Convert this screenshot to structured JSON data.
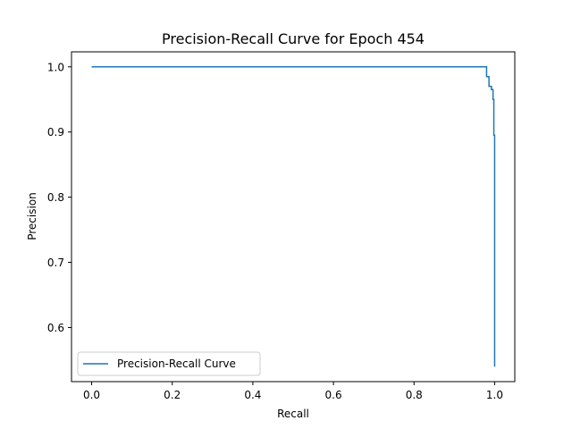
{
  "chart_data": {
    "type": "line",
    "title": "Precision-Recall Curve for Epoch 454",
    "xlabel": "Recall",
    "ylabel": "Precision",
    "xlim": [
      -0.05,
      1.05
    ],
    "ylim": [
      0.517,
      1.023
    ],
    "xticks": [
      0.0,
      0.2,
      0.4,
      0.6,
      0.8,
      1.0
    ],
    "xtick_labels": [
      "0.0",
      "0.2",
      "0.4",
      "0.6",
      "0.8",
      "1.0"
    ],
    "yticks": [
      0.6,
      0.7,
      0.8,
      0.9,
      1.0
    ],
    "ytick_labels": [
      "0.6",
      "0.7",
      "0.8",
      "0.9",
      "1.0"
    ],
    "grid": false,
    "legend_position": "lower-left",
    "series": [
      {
        "name": "Precision-Recall Curve",
        "color": "#1f77b4",
        "x": [
          0.0,
          0.98,
          0.98,
          0.986,
          0.986,
          0.992,
          0.992,
          0.996,
          0.996,
          0.998,
          0.998,
          1.0,
          1.0
        ],
        "y": [
          1.0,
          1.0,
          0.985,
          0.985,
          0.97,
          0.97,
          0.965,
          0.965,
          0.95,
          0.95,
          0.895,
          0.895,
          0.54
        ]
      }
    ]
  }
}
